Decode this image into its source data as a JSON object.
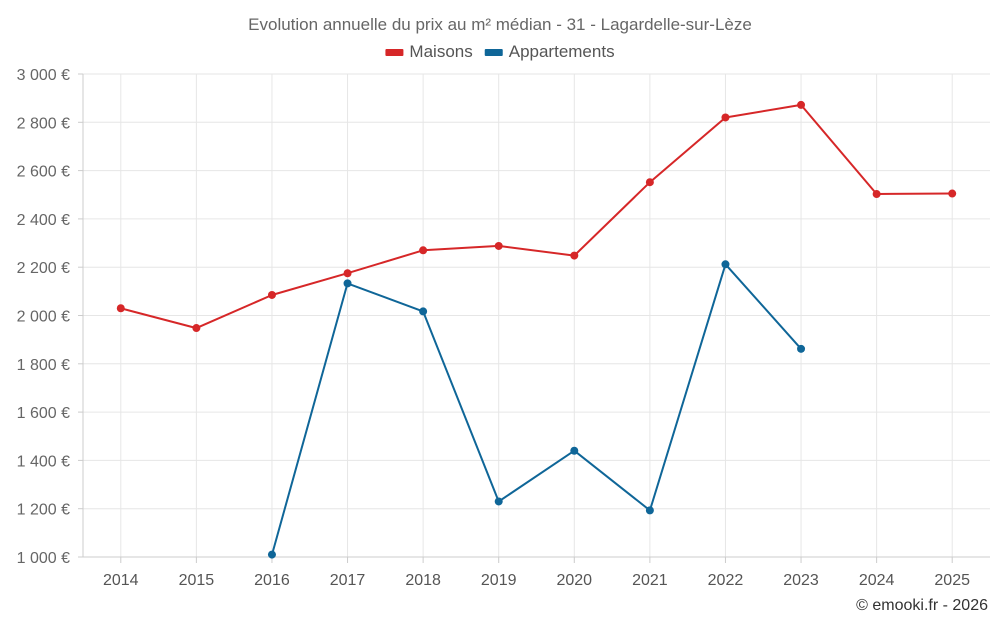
{
  "chart_data": {
    "type": "line",
    "title": "Evolution annuelle du prix au m² médian - 31 - Lagardelle-sur-Lèze",
    "categories": [
      "2014",
      "2015",
      "2016",
      "2017",
      "2018",
      "2019",
      "2020",
      "2021",
      "2022",
      "2023",
      "2024",
      "2025"
    ],
    "series": [
      {
        "name": "Maisons",
        "color": "#d62728",
        "values": [
          2030,
          1948,
          2085,
          2175,
          2270,
          2288,
          2248,
          2552,
          2820,
          2872,
          2503,
          2505
        ]
      },
      {
        "name": "Appartements",
        "color": "#0f6698",
        "values": [
          null,
          null,
          1010,
          2133,
          2017,
          1230,
          1440,
          1193,
          2212,
          1862,
          null,
          null
        ]
      }
    ],
    "ylim": [
      1000,
      3000
    ],
    "yticks": [
      1000,
      1200,
      1400,
      1600,
      1800,
      2000,
      2200,
      2400,
      2600,
      2800,
      3000
    ],
    "ytick_labels": [
      "1 000 €",
      "1 200 €",
      "1 400 €",
      "1 600 €",
      "1 800 €",
      "2 000 €",
      "2 200 €",
      "2 400 €",
      "2 600 €",
      "2 800 €",
      "3 000 €"
    ],
    "grid": true,
    "legend_position": "top-center",
    "credit": "© emooki.fr - 2026"
  }
}
